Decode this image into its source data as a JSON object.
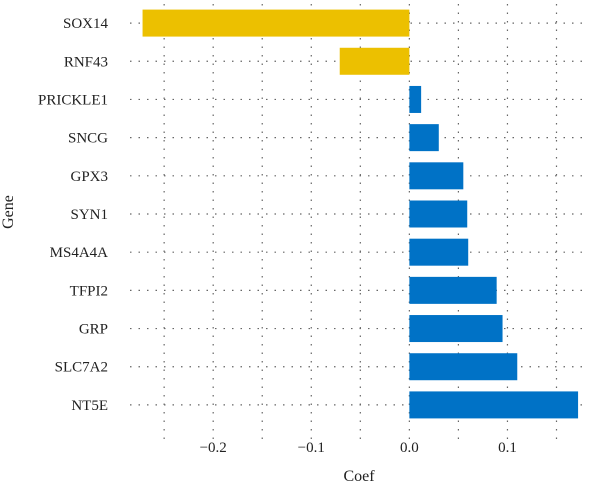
{
  "chart_data": {
    "type": "bar",
    "orientation": "horizontal",
    "categories": [
      "SOX14",
      "RNF43",
      "PRICKLE1",
      "SNCG",
      "GPX3",
      "SYN1",
      "MS4A4A",
      "TFPI2",
      "GRP",
      "SLC7A2",
      "NT5E"
    ],
    "values": [
      -0.272,
      -0.071,
      0.012,
      0.03,
      0.055,
      0.059,
      0.06,
      0.089,
      0.095,
      0.11,
      0.172
    ],
    "xlabel": "Coef",
    "ylabel": "Gene",
    "xlim": [
      -0.295,
      0.176
    ],
    "xticks": [
      -0.2,
      -0.1,
      0.0,
      0.1
    ],
    "xtick_labels": [
      "−0.2",
      "−0.1",
      "0.0",
      "0.1"
    ],
    "grid": true,
    "colors": {
      "negative": "#ECC000",
      "positive": "#0072C6"
    }
  }
}
